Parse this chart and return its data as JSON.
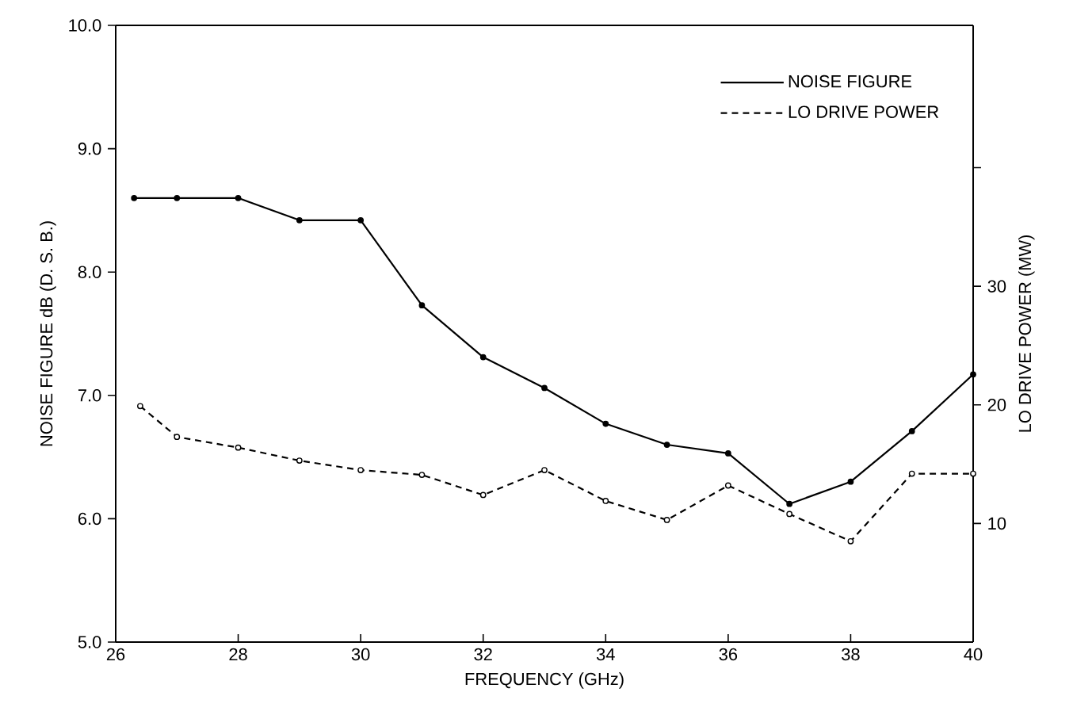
{
  "chart_data": {
    "type": "line",
    "xlabel": "FREQUENCY (GHz)",
    "ylabel": "NOISE FIGURE dB (D. S. B.)",
    "y2label": "LO DRIVE POWER (MW)",
    "xlim": [
      26,
      40
    ],
    "xticks": [
      26,
      28,
      30,
      32,
      34,
      36,
      38,
      40
    ],
    "ylim": [
      5,
      10
    ],
    "yticks": [
      {
        "value": 5,
        "label": "5.0"
      },
      {
        "value": 6,
        "label": "6.0"
      },
      {
        "value": 7,
        "label": "7.0"
      },
      {
        "value": 8,
        "label": "8.0"
      },
      {
        "value": 9,
        "label": "9.0"
      },
      {
        "value": 10,
        "label": "10.0"
      }
    ],
    "y2lim": [
      0,
      52
    ],
    "y2ticks": [
      10,
      20,
      30,
      {
        "value": 40,
        "label": null
      }
    ],
    "legend": "top right",
    "marker": "circle",
    "grid": false,
    "series": [
      {
        "name": "NOISE FIGURE",
        "color": "#000000",
        "line_style": "solid",
        "x": [
          26.3,
          27,
          28,
          29,
          30,
          31,
          32,
          33,
          34,
          35,
          36,
          37,
          38,
          39,
          40
        ],
        "values": [
          8.6,
          8.6,
          8.6,
          8.42,
          8.42,
          7.73,
          7.31,
          7.06,
          6.77,
          6.6,
          6.53,
          6.12,
          6.3,
          6.71,
          7.17
        ]
      },
      {
        "name": "LO DRIVE POWER",
        "color": "#000000",
        "line_style": "dashed",
        "axis": "y2",
        "x": [
          26.4,
          27,
          28,
          29,
          30,
          31,
          32,
          33,
          34,
          35,
          36,
          37,
          38,
          39,
          40
        ],
        "values": [
          19.9,
          17.3,
          16.4,
          15.3,
          14.5,
          14.1,
          12.4,
          14.5,
          11.9,
          10.3,
          13.2,
          10.8,
          8.5,
          14.2,
          14.2
        ]
      }
    ]
  }
}
